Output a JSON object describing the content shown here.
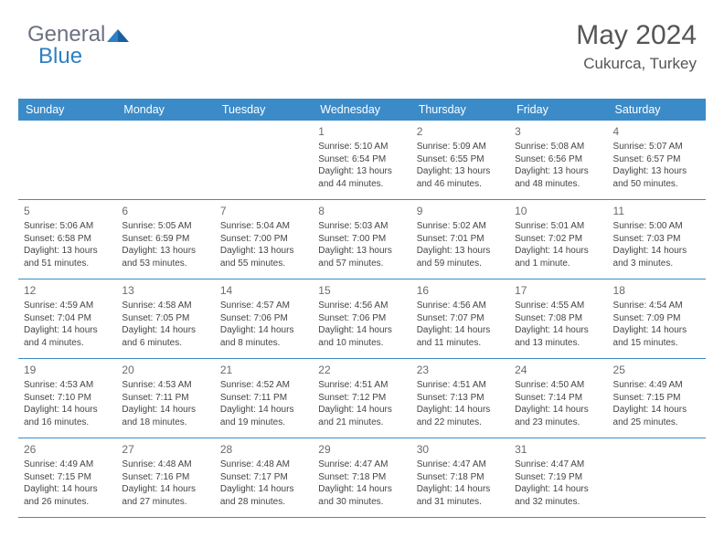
{
  "logo": {
    "part1": "General",
    "part2": "Blue"
  },
  "header": {
    "title": "May 2024",
    "location": "Cukurca, Turkey"
  },
  "colors": {
    "header_bg": "#3b8bc9",
    "header_text": "#ffffff",
    "row_border": "#3b8bc9",
    "text": "#444444",
    "title": "#555555"
  },
  "day_names": [
    "Sunday",
    "Monday",
    "Tuesday",
    "Wednesday",
    "Thursday",
    "Friday",
    "Saturday"
  ],
  "weeks": [
    [
      null,
      null,
      null,
      {
        "n": "1",
        "sr": "5:10 AM",
        "ss": "6:54 PM",
        "d1": "13 hours",
        "d2": "44 minutes"
      },
      {
        "n": "2",
        "sr": "5:09 AM",
        "ss": "6:55 PM",
        "d1": "13 hours",
        "d2": "46 minutes"
      },
      {
        "n": "3",
        "sr": "5:08 AM",
        "ss": "6:56 PM",
        "d1": "13 hours",
        "d2": "48 minutes"
      },
      {
        "n": "4",
        "sr": "5:07 AM",
        "ss": "6:57 PM",
        "d1": "13 hours",
        "d2": "50 minutes"
      }
    ],
    [
      {
        "n": "5",
        "sr": "5:06 AM",
        "ss": "6:58 PM",
        "d1": "13 hours",
        "d2": "51 minutes"
      },
      {
        "n": "6",
        "sr": "5:05 AM",
        "ss": "6:59 PM",
        "d1": "13 hours",
        "d2": "53 minutes"
      },
      {
        "n": "7",
        "sr": "5:04 AM",
        "ss": "7:00 PM",
        "d1": "13 hours",
        "d2": "55 minutes"
      },
      {
        "n": "8",
        "sr": "5:03 AM",
        "ss": "7:00 PM",
        "d1": "13 hours",
        "d2": "57 minutes"
      },
      {
        "n": "9",
        "sr": "5:02 AM",
        "ss": "7:01 PM",
        "d1": "13 hours",
        "d2": "59 minutes"
      },
      {
        "n": "10",
        "sr": "5:01 AM",
        "ss": "7:02 PM",
        "d1": "14 hours",
        "d2": "1 minute"
      },
      {
        "n": "11",
        "sr": "5:00 AM",
        "ss": "7:03 PM",
        "d1": "14 hours",
        "d2": "3 minutes"
      }
    ],
    [
      {
        "n": "12",
        "sr": "4:59 AM",
        "ss": "7:04 PM",
        "d1": "14 hours",
        "d2": "4 minutes"
      },
      {
        "n": "13",
        "sr": "4:58 AM",
        "ss": "7:05 PM",
        "d1": "14 hours",
        "d2": "6 minutes"
      },
      {
        "n": "14",
        "sr": "4:57 AM",
        "ss": "7:06 PM",
        "d1": "14 hours",
        "d2": "8 minutes"
      },
      {
        "n": "15",
        "sr": "4:56 AM",
        "ss": "7:06 PM",
        "d1": "14 hours",
        "d2": "10 minutes"
      },
      {
        "n": "16",
        "sr": "4:56 AM",
        "ss": "7:07 PM",
        "d1": "14 hours",
        "d2": "11 minutes"
      },
      {
        "n": "17",
        "sr": "4:55 AM",
        "ss": "7:08 PM",
        "d1": "14 hours",
        "d2": "13 minutes"
      },
      {
        "n": "18",
        "sr": "4:54 AM",
        "ss": "7:09 PM",
        "d1": "14 hours",
        "d2": "15 minutes"
      }
    ],
    [
      {
        "n": "19",
        "sr": "4:53 AM",
        "ss": "7:10 PM",
        "d1": "14 hours",
        "d2": "16 minutes"
      },
      {
        "n": "20",
        "sr": "4:53 AM",
        "ss": "7:11 PM",
        "d1": "14 hours",
        "d2": "18 minutes"
      },
      {
        "n": "21",
        "sr": "4:52 AM",
        "ss": "7:11 PM",
        "d1": "14 hours",
        "d2": "19 minutes"
      },
      {
        "n": "22",
        "sr": "4:51 AM",
        "ss": "7:12 PM",
        "d1": "14 hours",
        "d2": "21 minutes"
      },
      {
        "n": "23",
        "sr": "4:51 AM",
        "ss": "7:13 PM",
        "d1": "14 hours",
        "d2": "22 minutes"
      },
      {
        "n": "24",
        "sr": "4:50 AM",
        "ss": "7:14 PM",
        "d1": "14 hours",
        "d2": "23 minutes"
      },
      {
        "n": "25",
        "sr": "4:49 AM",
        "ss": "7:15 PM",
        "d1": "14 hours",
        "d2": "25 minutes"
      }
    ],
    [
      {
        "n": "26",
        "sr": "4:49 AM",
        "ss": "7:15 PM",
        "d1": "14 hours",
        "d2": "26 minutes"
      },
      {
        "n": "27",
        "sr": "4:48 AM",
        "ss": "7:16 PM",
        "d1": "14 hours",
        "d2": "27 minutes"
      },
      {
        "n": "28",
        "sr": "4:48 AM",
        "ss": "7:17 PM",
        "d1": "14 hours",
        "d2": "28 minutes"
      },
      {
        "n": "29",
        "sr": "4:47 AM",
        "ss": "7:18 PM",
        "d1": "14 hours",
        "d2": "30 minutes"
      },
      {
        "n": "30",
        "sr": "4:47 AM",
        "ss": "7:18 PM",
        "d1": "14 hours",
        "d2": "31 minutes"
      },
      {
        "n": "31",
        "sr": "4:47 AM",
        "ss": "7:19 PM",
        "d1": "14 hours",
        "d2": "32 minutes"
      },
      null
    ]
  ],
  "labels": {
    "sunrise": "Sunrise:",
    "sunset": "Sunset:",
    "daylight": "Daylight:",
    "and": "and"
  }
}
